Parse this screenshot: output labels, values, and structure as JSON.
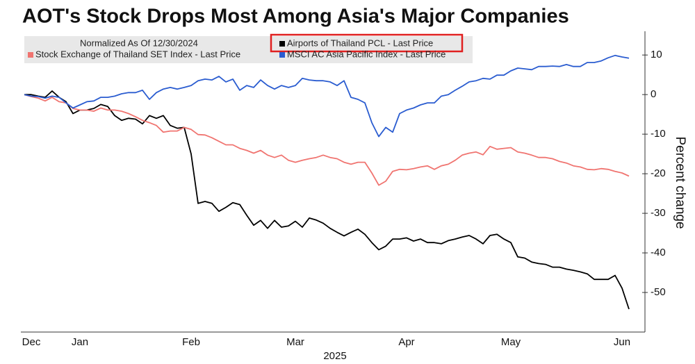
{
  "chart_data": {
    "type": "line",
    "title": "AOT's Stock Drops Most Among Asia's Major Companies",
    "legend_title": "Normalized As Of 12/30/2024",
    "xlabel": "2025",
    "ylabel": "Percent change",
    "categories": [
      null,
      "Dec",
      null,
      null,
      null,
      null,
      null,
      null,
      "Jan",
      null,
      null,
      null,
      null,
      null,
      null,
      null,
      null,
      null,
      null,
      null,
      null,
      null,
      null,
      null,
      "Feb",
      null,
      null,
      null,
      null,
      null,
      null,
      null,
      null,
      null,
      null,
      null,
      null,
      null,
      null,
      "Mar",
      null,
      null,
      null,
      null,
      null,
      null,
      null,
      null,
      null,
      null,
      null,
      null,
      null,
      null,
      null,
      "Apr",
      null,
      null,
      null,
      null,
      null,
      null,
      null,
      null,
      null,
      null,
      null,
      null,
      null,
      null,
      "May",
      null,
      null,
      null,
      null,
      null,
      null,
      null,
      null,
      null,
      null,
      null,
      null,
      null,
      null,
      null,
      "Jun",
      null
    ],
    "series": [
      {
        "name": "Airports of Thailand PCL - Last Price",
        "color": "#000000",
        "values": [
          0,
          0,
          -0.4,
          -0.7,
          0.9,
          -0.7,
          -1.8,
          -4.8,
          -3.9,
          -3.9,
          -3.5,
          -2.5,
          -3.0,
          -5.3,
          -6.5,
          -6.0,
          -6.2,
          -7.4,
          -5.3,
          -6.0,
          -5.3,
          -7.8,
          -8.5,
          -8.3,
          -15,
          -27.5,
          -27.0,
          -27.5,
          -29.5,
          -28.5,
          -27.3,
          -27.8,
          -30.5,
          -33.0,
          -31.8,
          -33.8,
          -31.8,
          -33.5,
          -33.2,
          -32.0,
          -33.5,
          -31.2,
          -31.7,
          -32.5,
          -33.8,
          -34.8,
          -35.7,
          -34.8,
          -34.0,
          -35.3,
          -37.4,
          -39.2,
          -38.3,
          -36.5,
          -36.5,
          -36.2,
          -37.0,
          -36.5,
          -37.4,
          -37.4,
          -37.7,
          -36.9,
          -36.5,
          -36.0,
          -35.6,
          -36.5,
          -37.7,
          -35.6,
          -35.3,
          -36.5,
          -37.4,
          -41.0,
          -41.3,
          -42.3,
          -42.7,
          -42.9,
          -43.6,
          -43.6,
          -44.1,
          -44.4,
          -44.8,
          -45.3,
          -46.7,
          -46.7,
          -46.7,
          -45.7,
          -48.9,
          -54.2
        ]
      },
      {
        "name": "Stock Exchange of Thailand SET Index - Last Price",
        "color": "#f07470",
        "values": [
          0,
          -0.5,
          -0.9,
          -1.6,
          -0.7,
          -1.8,
          -2.1,
          -3.5,
          -3.9,
          -3.9,
          -4.2,
          -3.4,
          -3.9,
          -3.9,
          -4.2,
          -4.8,
          -5.6,
          -6.5,
          -7.1,
          -7.8,
          -9.5,
          -9.2,
          -9.2,
          -8.3,
          -8.8,
          -10.1,
          -10.2,
          -10.9,
          -11.8,
          -12.7,
          -12.7,
          -13.6,
          -14.1,
          -14.8,
          -14.1,
          -15.3,
          -15.9,
          -15.3,
          -16.6,
          -17.1,
          -16.6,
          -16.2,
          -15.9,
          -15.3,
          -15.9,
          -16.2,
          -17.1,
          -17.6,
          -17.1,
          -17.1,
          -19.8,
          -22.9,
          -21.9,
          -19.4,
          -18.9,
          -19.0,
          -18.7,
          -18.3,
          -18.0,
          -18.9,
          -18.0,
          -17.6,
          -16.6,
          -15.3,
          -14.8,
          -14.5,
          -15.2,
          -13.1,
          -13.8,
          -13.6,
          -13.4,
          -14.5,
          -14.8,
          -15.3,
          -15.9,
          -15.9,
          -16.2,
          -16.9,
          -17.3,
          -18.0,
          -18.3,
          -18.9,
          -19.0,
          -18.7,
          -18.9,
          -19.4,
          -19.8,
          -20.6
        ]
      },
      {
        "name": "MSCI AC Asia Pacific Index - Last Price",
        "color": "#2a5cd0",
        "values": [
          0,
          -0.4,
          -0.5,
          -0.9,
          -0.4,
          -0.7,
          -2.1,
          -3.4,
          -2.6,
          -1.8,
          -1.6,
          -0.7,
          -0.7,
          -0.4,
          0.2,
          0.5,
          0.5,
          1.1,
          -1.2,
          0.5,
          1.4,
          1.8,
          1.4,
          1.8,
          2.3,
          3.5,
          3.9,
          3.7,
          4.6,
          3.2,
          3.9,
          1.1,
          2.3,
          1.8,
          3.7,
          2.3,
          1.4,
          2.3,
          1.8,
          2.3,
          4.1,
          3.7,
          3.5,
          3.5,
          3.2,
          2.3,
          3.5,
          -0.7,
          -1.2,
          -2.1,
          -7.1,
          -10.6,
          -8.3,
          -9.5,
          -4.8,
          -3.9,
          -3.4,
          -2.6,
          -2.1,
          -2.1,
          -0.4,
          0,
          1.1,
          2.1,
          3.2,
          3.5,
          4.1,
          3.9,
          4.9,
          4.9,
          6.0,
          6.7,
          6.5,
          6.3,
          7.1,
          7.1,
          7.2,
          7.1,
          7.6,
          7.1,
          7.1,
          8.1,
          8.1,
          8.5,
          9.3,
          9.9,
          9.5,
          9.2
        ]
      }
    ],
    "ylim": [
      -60,
      16
    ],
    "yticks": [
      10,
      0,
      -10,
      -20,
      -30,
      -40,
      -50
    ],
    "grid": false,
    "y_axis_side": "right"
  }
}
